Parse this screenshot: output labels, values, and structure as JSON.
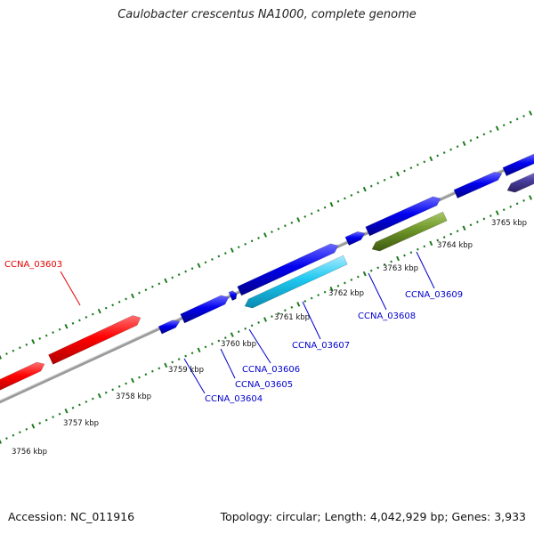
{
  "title": "Caulobacter crescentus NA1000, complete genome",
  "footer": {
    "accession": "Accession: NC_011916",
    "summary": "Topology: circular; Length: 4,042,929 bp; Genes: 3,933"
  },
  "colors": {
    "red_gene": "#ff0000",
    "blue_gene": "#0000ee",
    "cyan_gene": "#1ec8f0",
    "olive_gene": "#6e9628",
    "purple_gene": "#4a3fa0",
    "backbone": "#8c8c8c",
    "tick": "#1a7a1a",
    "label_red": "#e00000",
    "label_blue": "#0000cc"
  },
  "scale_labels": [
    "3756 kbp",
    "3757 kbp",
    "3758 kbp",
    "3759 kbp",
    "3760 kbp",
    "3761 kbp",
    "3762 kbp",
    "3763 kbp",
    "3764 kbp",
    "3765 kbp"
  ],
  "genes": [
    {
      "id": "CCNA_03603",
      "strand": "forward",
      "color": "red"
    },
    {
      "id": "CCNA_03604",
      "strand": "forward",
      "color": "blue"
    },
    {
      "id": "CCNA_03605",
      "strand": "forward",
      "color": "blue"
    },
    {
      "id": "CCNA_03606",
      "strand": "forward",
      "color": "blue"
    },
    {
      "id": "CCNA_03607",
      "strand": "reverse",
      "color": "cyan"
    },
    {
      "id": "CCNA_03608",
      "strand": "forward",
      "color": "blue"
    },
    {
      "id": "CCNA_03609",
      "strand": "reverse",
      "color": "olive"
    }
  ]
}
